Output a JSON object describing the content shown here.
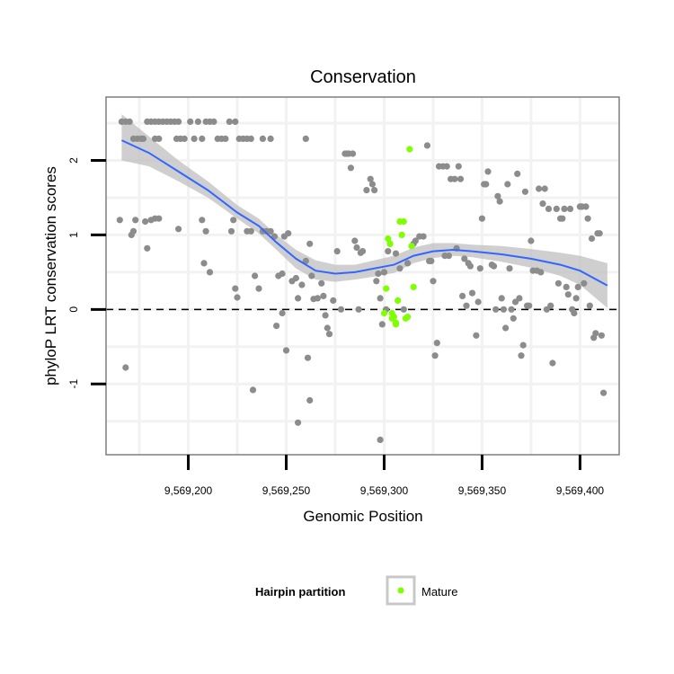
{
  "chart_data": {
    "type": "scatter",
    "title": "Conservation",
    "xlabel": "Genomic Position",
    "ylabel": "phyloP LRT conservation scores",
    "xlim": [
      9569158,
      9569420
    ],
    "ylim": [
      -1.95,
      2.85
    ],
    "x_ticks": [
      {
        "value": 9569200,
        "label": "9,569,200"
      },
      {
        "value": 9569250,
        "label": "9,569,250"
      },
      {
        "value": 9569300,
        "label": "9,569,300"
      },
      {
        "value": 9569350,
        "label": "9,569,350"
      },
      {
        "value": 9569400,
        "label": "9,569,400"
      }
    ],
    "y_ticks": [
      {
        "value": -1,
        "label": "-1"
      },
      {
        "value": 0,
        "label": "0"
      },
      {
        "value": 1,
        "label": "1"
      },
      {
        "value": 2,
        "label": "2"
      }
    ],
    "reference_line": {
      "y": 0,
      "style": "dashed"
    },
    "grid": true,
    "legend": {
      "title": "Hairpin partition",
      "placement": "bottom",
      "entries": [
        {
          "label": "Mature",
          "color": "#7fff00"
        }
      ]
    },
    "colors": {
      "background_points": "#8c8c8c",
      "mature_points": "#7fff00",
      "smooth_line": "#3366ff",
      "confidence_band": "#bfbfbf",
      "panel_background": "#ffffff",
      "grid": "#f2f2f2",
      "panel_border": "#7f7f7f"
    },
    "series": [
      {
        "color_key": "background_points",
        "points": [
          [
            9569166,
            2.52
          ],
          [
            9569168,
            2.52
          ],
          [
            9569170,
            2.52
          ],
          [
            9569172,
            2.29
          ],
          [
            9569174,
            2.29
          ],
          [
            9569176,
            2.29
          ],
          [
            9569179,
            2.52
          ],
          [
            9569181,
            2.52
          ],
          [
            9569183,
            2.52
          ],
          [
            9569185,
            2.52
          ],
          [
            9569187,
            2.52
          ],
          [
            9569189,
            2.52
          ],
          [
            9569191,
            2.52
          ],
          [
            9569193,
            2.52
          ],
          [
            9569195,
            2.52
          ],
          [
            9569177,
            2.29
          ],
          [
            9569183,
            2.29
          ],
          [
            9569185,
            2.29
          ],
          [
            9569194,
            2.29
          ],
          [
            9569196,
            2.29
          ],
          [
            9569198,
            2.29
          ],
          [
            9569201,
            2.52
          ],
          [
            9569203,
            2.29
          ],
          [
            9569205,
            2.52
          ],
          [
            9569207,
            2.29
          ],
          [
            9569209,
            2.52
          ],
          [
            9569211,
            2.52
          ],
          [
            9569213,
            2.52
          ],
          [
            9569215,
            2.29
          ],
          [
            9569217,
            2.29
          ],
          [
            9569219,
            2.29
          ],
          [
            9569221,
            2.52
          ],
          [
            9569224,
            2.52
          ],
          [
            9569226,
            2.29
          ],
          [
            9569228,
            2.29
          ],
          [
            9569230,
            2.29
          ],
          [
            9569232,
            2.29
          ],
          [
            9569238,
            2.29
          ],
          [
            9569242,
            2.29
          ],
          [
            9569260,
            2.29
          ],
          [
            9569165,
            1.2
          ],
          [
            9569171,
            1.0
          ],
          [
            9569172,
            1.05
          ],
          [
            9569173,
            1.2
          ],
          [
            9569178,
            1.18
          ],
          [
            9569179,
            0.82
          ],
          [
            9569181,
            1.2
          ],
          [
            9569183,
            1.22
          ],
          [
            9569185,
            1.22
          ],
          [
            9569195,
            1.08
          ],
          [
            9569207,
            1.2
          ],
          [
            9569209,
            1.05
          ],
          [
            9569208,
            0.62
          ],
          [
            9569211,
            0.5
          ],
          [
            9569222,
            1.05
          ],
          [
            9569223,
            1.2
          ],
          [
            9569224,
            0.28
          ],
          [
            9569225,
            0.16
          ],
          [
            9569230,
            1.05
          ],
          [
            9569232,
            1.05
          ],
          [
            9569234,
            0.45
          ],
          [
            9569236,
            0.28
          ],
          [
            9569238,
            1.05
          ],
          [
            9569240,
            1.05
          ],
          [
            9569242,
            1.05
          ],
          [
            9569244,
            0.98
          ],
          [
            9569246,
            0.45
          ],
          [
            9569248,
            0.48
          ],
          [
            9569249,
            0.98
          ],
          [
            9569251,
            1.02
          ],
          [
            9569253,
            0.38
          ],
          [
            9569255,
            0.42
          ],
          [
            9569256,
            0.15
          ],
          [
            9569258,
            0.33
          ],
          [
            9569260,
            0.65
          ],
          [
            9569262,
            0.88
          ],
          [
            9569263,
            0.45
          ],
          [
            9569264,
            0.14
          ],
          [
            9569266,
            0.15
          ],
          [
            9569268,
            0.35
          ],
          [
            9569269,
            0.18
          ],
          [
            9569270,
            -0.08
          ],
          [
            9569271,
            -0.25
          ],
          [
            9569272,
            -0.33
          ],
          [
            9569274,
            0.12
          ],
          [
            9569276,
            0.78
          ],
          [
            9569278,
            0.0
          ],
          [
            9569280,
            2.09
          ],
          [
            9569281,
            2.09
          ],
          [
            9569282,
            2.09
          ],
          [
            9569283,
            1.9
          ],
          [
            9569284,
            2.09
          ],
          [
            9569285,
            0.92
          ],
          [
            9569286,
            0.83
          ],
          [
            9569287,
            0.0
          ],
          [
            9569288,
            0.76
          ],
          [
            9569289,
            0.78
          ],
          [
            9569291,
            1.6
          ],
          [
            9569293,
            1.75
          ],
          [
            9569294,
            1.68
          ],
          [
            9569295,
            1.6
          ],
          [
            9569296,
            0.38
          ],
          [
            9569297,
            0.48
          ],
          [
            9569298,
            0.15
          ],
          [
            9569299,
            -0.2
          ],
          [
            9569300,
            0.5
          ],
          [
            9569301,
            0.0
          ],
          [
            9569302,
            0.78
          ],
          [
            9569298,
            -1.75
          ],
          [
            9569303,
            0.88
          ],
          [
            9569306,
            0.75
          ],
          [
            9569308,
            0.55
          ],
          [
            9569310,
            0.0
          ],
          [
            9569312,
            0.62
          ],
          [
            9569315,
            0.88
          ],
          [
            9569316,
            0.92
          ],
          [
            9569318,
            0.98
          ],
          [
            9569320,
            0.98
          ],
          [
            9569322,
            2.2
          ],
          [
            9569323,
            0.65
          ],
          [
            9569324,
            0.65
          ],
          [
            9569325,
            0.38
          ],
          [
            9569326,
            -0.62
          ],
          [
            9569327,
            -0.45
          ],
          [
            9569328,
            1.92
          ],
          [
            9569330,
            1.92
          ],
          [
            9569331,
            0.72
          ],
          [
            9569332,
            1.92
          ],
          [
            9569333,
            0.72
          ],
          [
            9569334,
            1.75
          ],
          [
            9569336,
            1.75
          ],
          [
            9569337,
            0.82
          ],
          [
            9569338,
            1.92
          ],
          [
            9569339,
            1.75
          ],
          [
            9569340,
            0.18
          ],
          [
            9569341,
            0.68
          ],
          [
            9569342,
            0.05
          ],
          [
            9569343,
            0.62
          ],
          [
            9569344,
            0.58
          ],
          [
            9569345,
            0.22
          ],
          [
            9569347,
            -0.35
          ],
          [
            9569348,
            0.1
          ],
          [
            9569349,
            0.55
          ],
          [
            9569350,
            1.22
          ],
          [
            9569351,
            1.68
          ],
          [
            9569352,
            1.68
          ],
          [
            9569353,
            1.85
          ],
          [
            9569355,
            0.6
          ],
          [
            9569356,
            0.58
          ],
          [
            9569357,
            0.0
          ],
          [
            9569358,
            1.52
          ],
          [
            9569359,
            1.45
          ],
          [
            9569360,
            0.15
          ],
          [
            9569361,
            0.0
          ],
          [
            9569362,
            -0.25
          ],
          [
            9569363,
            1.68
          ],
          [
            9569364,
            0.55
          ],
          [
            9569365,
            0.0
          ],
          [
            9569366,
            -0.12
          ],
          [
            9569367,
            0.1
          ],
          [
            9569368,
            1.82
          ],
          [
            9569369,
            0.15
          ],
          [
            9569370,
            -0.62
          ],
          [
            9569371,
            -0.48
          ],
          [
            9569372,
            1.58
          ],
          [
            9569373,
            0.05
          ],
          [
            9569374,
            0.05
          ],
          [
            9569375,
            0.92
          ],
          [
            9569376,
            0.52
          ],
          [
            9569378,
            0.52
          ],
          [
            9569379,
            1.62
          ],
          [
            9569380,
            0.5
          ],
          [
            9569381,
            1.42
          ],
          [
            9569382,
            1.62
          ],
          [
            9569383,
            0.0
          ],
          [
            9569384,
            1.35
          ],
          [
            9569385,
            0.05
          ],
          [
            9569386,
            -0.72
          ],
          [
            9569388,
            1.35
          ],
          [
            9569389,
            0.35
          ],
          [
            9569390,
            1.22
          ],
          [
            9569391,
            1.22
          ],
          [
            9569392,
            1.35
          ],
          [
            9569393,
            0.3
          ],
          [
            9569394,
            0.2
          ],
          [
            9569395,
            1.35
          ],
          [
            9569396,
            0.0
          ],
          [
            9569397,
            -0.05
          ],
          [
            9569398,
            0.15
          ],
          [
            9569399,
            0.3
          ],
          [
            9569400,
            1.38
          ],
          [
            9569401,
            1.38
          ],
          [
            9569402,
            0.35
          ],
          [
            9569403,
            1.38
          ],
          [
            9569404,
            1.22
          ],
          [
            9569405,
            0.05
          ],
          [
            9569406,
            0.95
          ],
          [
            9569407,
            -0.38
          ],
          [
            9569408,
            -0.32
          ],
          [
            9569409,
            1.02
          ],
          [
            9569410,
            1.02
          ],
          [
            9569411,
            -0.35
          ],
          [
            9569412,
            -1.12
          ],
          [
            9569168,
            -0.78
          ],
          [
            9569233,
            -1.08
          ],
          [
            9569250,
            -0.55
          ],
          [
            9569256,
            -1.52
          ],
          [
            9569261,
            -0.65
          ],
          [
            9569262,
            -1.22
          ],
          [
            9569245,
            -0.22
          ],
          [
            9569248,
            -0.05
          ]
        ]
      },
      {
        "name": "Mature",
        "color_key": "mature_points",
        "points": [
          [
            9569300,
            -0.05
          ],
          [
            9569301,
            0.28
          ],
          [
            9569302,
            0.95
          ],
          [
            9569303,
            0.88
          ],
          [
            9569304,
            -0.12
          ],
          [
            9569305,
            -0.1
          ],
          [
            9569306,
            -0.18
          ],
          [
            9569307,
            0.12
          ],
          [
            9569308,
            1.18
          ],
          [
            9569309,
            1.0
          ],
          [
            9569310,
            1.18
          ],
          [
            9569311,
            -0.12
          ],
          [
            9569312,
            -0.1
          ],
          [
            9569313,
            2.15
          ],
          [
            9569314,
            0.85
          ],
          [
            9569315,
            0.3
          ],
          [
            9569304,
            -0.05
          ],
          [
            9569306,
            -0.2
          ]
        ]
      }
    ],
    "smooth": {
      "x": [
        9569166,
        9569180,
        9569195,
        9569210,
        9569225,
        9569236,
        9569245,
        9569255,
        9569265,
        9569275,
        9569285,
        9569295,
        9569305,
        9569315,
        9569325,
        9569335,
        9569345,
        9569360,
        9569375,
        9569390,
        9569400,
        9569414
      ],
      "y": [
        2.27,
        2.1,
        1.85,
        1.6,
        1.3,
        1.12,
        0.9,
        0.68,
        0.52,
        0.48,
        0.5,
        0.55,
        0.6,
        0.72,
        0.78,
        0.8,
        0.78,
        0.74,
        0.68,
        0.6,
        0.52,
        0.32
      ],
      "lower": [
        2.0,
        1.92,
        1.72,
        1.5,
        1.22,
        1.02,
        0.8,
        0.55,
        0.4,
        0.37,
        0.4,
        0.44,
        0.49,
        0.62,
        0.69,
        0.72,
        0.7,
        0.64,
        0.56,
        0.45,
        0.33,
        0.02
      ],
      "upper": [
        2.62,
        2.32,
        2.0,
        1.72,
        1.4,
        1.22,
        1.0,
        0.8,
        0.66,
        0.6,
        0.6,
        0.66,
        0.72,
        0.83,
        0.89,
        0.89,
        0.87,
        0.85,
        0.81,
        0.76,
        0.72,
        0.62
      ]
    }
  }
}
